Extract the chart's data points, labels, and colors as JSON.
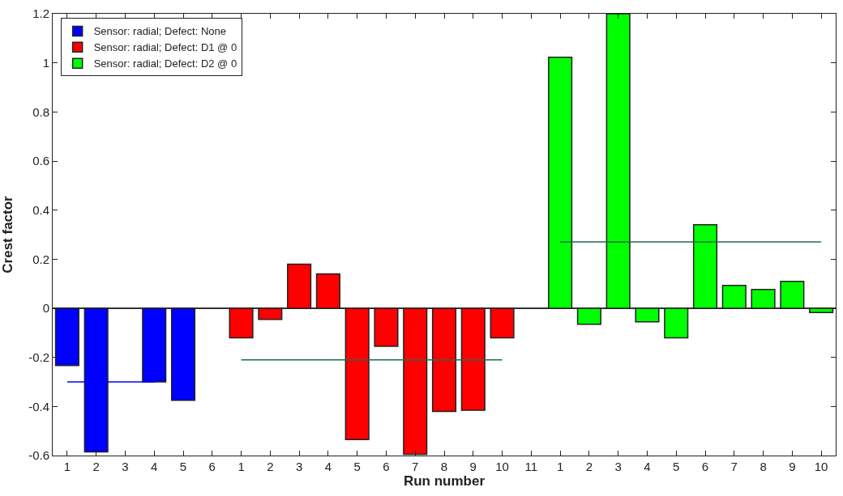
{
  "chart_data": {
    "type": "bar",
    "xlabel": "Run number",
    "ylabel": "Crest factor",
    "categories": [
      "1",
      "2",
      "3",
      "4",
      "5",
      "6",
      "1",
      "2",
      "3",
      "4",
      "5",
      "6",
      "7",
      "8",
      "9",
      "10",
      "11",
      "1",
      "2",
      "3",
      "4",
      "5",
      "6",
      "7",
      "8",
      "9",
      "10"
    ],
    "ylim": [
      -0.6,
      1.2
    ],
    "yticks": [
      -0.6,
      -0.4,
      -0.2,
      0,
      0.2,
      0.4,
      0.6,
      0.8,
      1,
      1.2
    ],
    "legend": "top left",
    "ref_lines": [
      {
        "axis": "y",
        "value": 0,
        "color": "#333333"
      }
    ],
    "series": [
      {
        "name": "Sensor: radial; Defect: None",
        "color": "#0000ff",
        "values": [
          -0.233,
          -0.585,
          null,
          -0.3,
          -0.375,
          null,
          null,
          null,
          null,
          null,
          null,
          null,
          null,
          null,
          null,
          null,
          null,
          null,
          null,
          null,
          null,
          null,
          null,
          null,
          null,
          null,
          null
        ]
      },
      {
        "name": "Sensor: radial; Defect: D1 @ 0",
        "color": "#ff0000",
        "values": [
          null,
          null,
          null,
          null,
          null,
          null,
          -0.12,
          -0.045,
          0.18,
          0.14,
          -0.535,
          -0.155,
          -0.595,
          -0.42,
          -0.415,
          -0.12,
          null,
          null,
          null,
          null,
          null,
          null,
          null,
          null,
          null,
          null,
          null
        ]
      },
      {
        "name": "Sensor: radial; Defect: D2 @ 0",
        "color": "#00ff00",
        "values": [
          null,
          null,
          null,
          null,
          null,
          null,
          null,
          null,
          null,
          null,
          null,
          null,
          null,
          null,
          null,
          null,
          null,
          1.023,
          -0.065,
          1.2,
          -0.055,
          -0.12,
          0.34,
          0.093,
          0.077,
          0.11,
          -0.017
        ]
      },
      {
        "type": "line",
        "color": "#0000ff",
        "values": [
          -0.3,
          -0.3,
          -0.3,
          -0.3,
          null,
          null,
          null,
          null,
          null,
          null,
          null,
          null,
          null,
          null,
          null,
          null,
          null,
          null,
          null,
          null,
          null,
          null,
          null,
          null,
          null,
          null,
          null
        ]
      },
      {
        "type": "line",
        "color": "#1f6b4f",
        "values": [
          null,
          null,
          null,
          null,
          null,
          null,
          -0.21,
          -0.21,
          -0.21,
          -0.21,
          -0.21,
          -0.21,
          -0.21,
          -0.21,
          -0.21,
          -0.21,
          null,
          null,
          null,
          null,
          null,
          null,
          null,
          null,
          null,
          null,
          null
        ]
      },
      {
        "type": "line",
        "color": "#1f6b4f",
        "values": [
          null,
          null,
          null,
          null,
          null,
          null,
          null,
          null,
          null,
          null,
          null,
          null,
          null,
          null,
          null,
          null,
          null,
          0.27,
          0.27,
          0.27,
          0.27,
          0.27,
          0.27,
          0.27,
          0.27,
          0.27,
          0.27
        ]
      }
    ]
  }
}
